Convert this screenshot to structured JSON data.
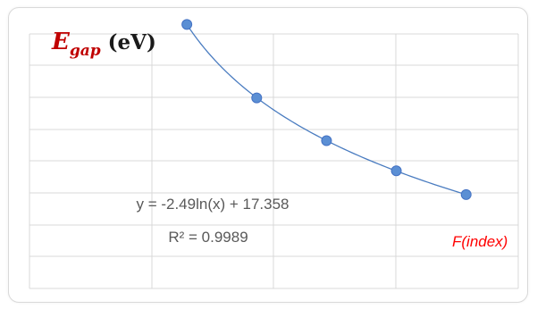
{
  "chart_data": {
    "type": "scatter",
    "title": "",
    "ylabel_main": "E",
    "ylabel_sub": "gap",
    "ylabel_unit": " (eV)",
    "xlabel": "F(index)",
    "grid": true,
    "points": [
      {
        "x": 1,
        "y": 17.36
      },
      {
        "x": 2,
        "y": 15.63
      },
      {
        "x": 3,
        "y": 14.62
      },
      {
        "x": 4,
        "y": 13.91
      },
      {
        "x": 5,
        "y": 13.35
      }
    ],
    "fit": {
      "type": "logarithmic",
      "a": -2.49,
      "b": 17.358,
      "equation": "y = -2.49ln(x) + 17.358",
      "r_squared": "R² = 0.9989"
    },
    "colors": {
      "marker": "#5b8fd4",
      "marker_edge": "#4472c4",
      "trendline": "#4a7cc0",
      "grid": "#d9d9d9",
      "ylabel": "#c00000",
      "xlabel": "#ff0000",
      "annotation": "#595959"
    }
  }
}
